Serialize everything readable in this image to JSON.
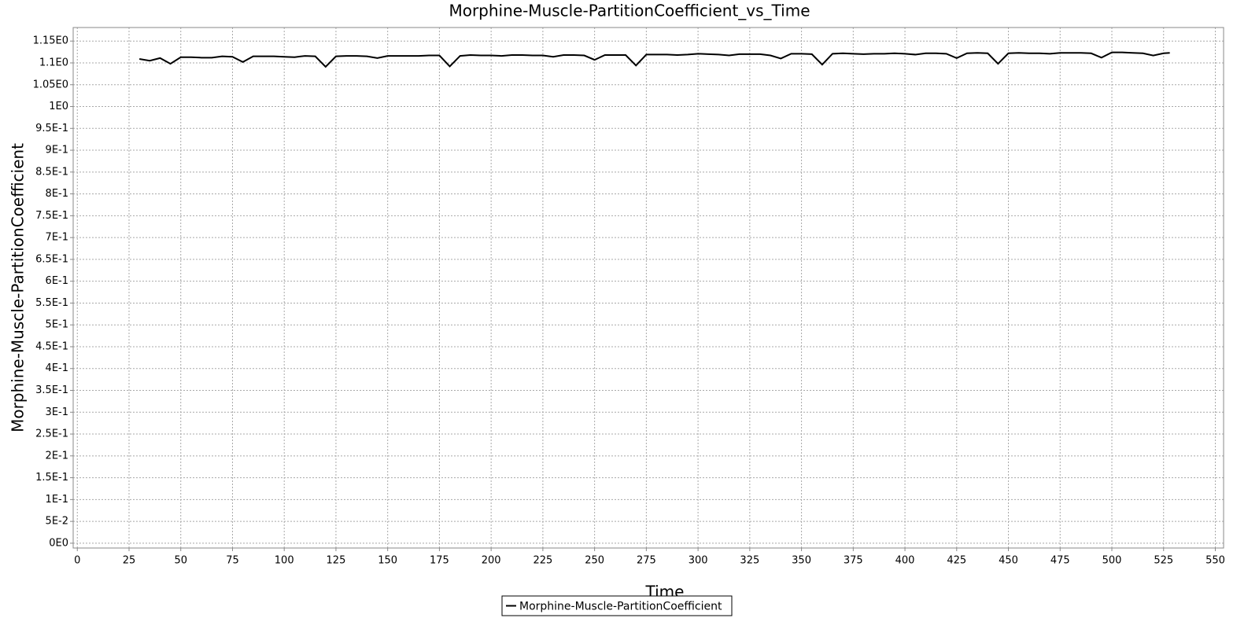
{
  "chart_data": {
    "type": "line",
    "title": "Morphine-Muscle-PartitionCoefficient_vs_Time",
    "x_label": "Time",
    "y_label": "Morphine-Muscle-PartitionCoefficient",
    "x": [
      30,
      35,
      40,
      45,
      50,
      55,
      60,
      65,
      70,
      75,
      80,
      85,
      90,
      95,
      100,
      105,
      110,
      115,
      120,
      125,
      130,
      135,
      140,
      145,
      150,
      155,
      160,
      165,
      170,
      175,
      180,
      185,
      190,
      195,
      200,
      205,
      210,
      215,
      220,
      225,
      230,
      235,
      240,
      245,
      250,
      255,
      260,
      265,
      270,
      275,
      280,
      285,
      290,
      295,
      300,
      305,
      310,
      315,
      320,
      325,
      330,
      335,
      340,
      345,
      350,
      355,
      360,
      365,
      370,
      375,
      380,
      385,
      390,
      395,
      400,
      405,
      410,
      415,
      420,
      425,
      430,
      435,
      440,
      445,
      450,
      455,
      460,
      465,
      470,
      475,
      480,
      485,
      490,
      495,
      500,
      505,
      510,
      515,
      520,
      525,
      528
    ],
    "series": [
      {
        "name": "Morphine-Muscle-PartitionCoefficient",
        "color": "#000000",
        "values": [
          1.109,
          1.105,
          1.111,
          1.098,
          1.113,
          1.113,
          1.112,
          1.112,
          1.115,
          1.114,
          1.102,
          1.115,
          1.115,
          1.115,
          1.114,
          1.113,
          1.116,
          1.115,
          1.091,
          1.115,
          1.116,
          1.116,
          1.115,
          1.111,
          1.116,
          1.116,
          1.116,
          1.116,
          1.117,
          1.117,
          1.092,
          1.116,
          1.118,
          1.117,
          1.117,
          1.116,
          1.118,
          1.118,
          1.117,
          1.117,
          1.114,
          1.118,
          1.118,
          1.117,
          1.107,
          1.118,
          1.118,
          1.118,
          1.094,
          1.119,
          1.119,
          1.119,
          1.118,
          1.119,
          1.121,
          1.12,
          1.119,
          1.117,
          1.12,
          1.12,
          1.12,
          1.117,
          1.11,
          1.121,
          1.121,
          1.12,
          1.096,
          1.121,
          1.122,
          1.121,
          1.12,
          1.121,
          1.121,
          1.122,
          1.121,
          1.119,
          1.122,
          1.122,
          1.121,
          1.111,
          1.122,
          1.123,
          1.122,
          1.098,
          1.122,
          1.123,
          1.122,
          1.122,
          1.121,
          1.123,
          1.123,
          1.123,
          1.122,
          1.112,
          1.124,
          1.124,
          1.123,
          1.122,
          1.117,
          1.122,
          1.123
        ]
      }
    ],
    "xlim": [
      -2,
      554
    ],
    "ylim": [
      -0.011,
      1.181
    ],
    "xticks": [
      0,
      25,
      50,
      75,
      100,
      125,
      150,
      175,
      200,
      225,
      250,
      275,
      300,
      325,
      350,
      375,
      400,
      425,
      450,
      475,
      500,
      525,
      550
    ],
    "yticks": [
      {
        "value": 0,
        "label": "0E0"
      },
      {
        "value": 0.05,
        "label": "5E-2"
      },
      {
        "value": 0.1,
        "label": "1E-1"
      },
      {
        "value": 0.15,
        "label": "1.5E-1"
      },
      {
        "value": 0.2,
        "label": "2E-1"
      },
      {
        "value": 0.25,
        "label": "2.5E-1"
      },
      {
        "value": 0.3,
        "label": "3E-1"
      },
      {
        "value": 0.35,
        "label": "3.5E-1"
      },
      {
        "value": 0.4,
        "label": "4E-1"
      },
      {
        "value": 0.45,
        "label": "4.5E-1"
      },
      {
        "value": 0.5,
        "label": "5E-1"
      },
      {
        "value": 0.55,
        "label": "5.5E-1"
      },
      {
        "value": 0.6,
        "label": "6E-1"
      },
      {
        "value": 0.65,
        "label": "6.5E-1"
      },
      {
        "value": 0.7,
        "label": "7E-1"
      },
      {
        "value": 0.75,
        "label": "7.5E-1"
      },
      {
        "value": 0.8,
        "label": "8E-1"
      },
      {
        "value": 0.85,
        "label": "8.5E-1"
      },
      {
        "value": 0.9,
        "label": "9E-1"
      },
      {
        "value": 0.95,
        "label": "9.5E-1"
      },
      {
        "value": 1,
        "label": "1E0"
      },
      {
        "value": 1.05,
        "label": "1.05E0"
      },
      {
        "value": 1.1,
        "label": "1.1E0"
      },
      {
        "value": 1.15,
        "label": "1.15E0"
      }
    ],
    "grid": true,
    "legend": "bottom"
  }
}
